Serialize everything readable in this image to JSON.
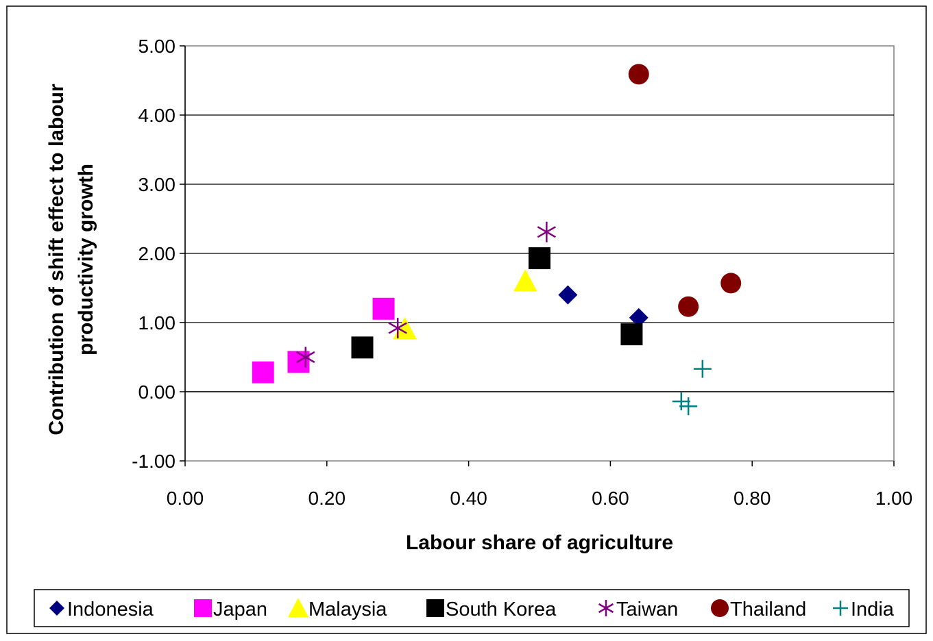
{
  "chart_data": {
    "type": "scatter",
    "title": "",
    "xlabel": "Labour share of agriculture",
    "ylabel_lines": [
      "Contribution of shift effect to labour",
      "productivity growth"
    ],
    "xlim": [
      0,
      1
    ],
    "ylim": [
      -1,
      5
    ],
    "x_ticks": [
      0,
      0.2,
      0.4,
      0.6,
      0.8,
      1
    ],
    "y_ticks": [
      -1,
      0,
      1,
      2,
      3,
      4,
      5
    ],
    "x_tick_labels": [
      "0.00",
      "0.20",
      "0.40",
      "0.60",
      "0.80",
      "1.00"
    ],
    "y_tick_labels": [
      "-1.00",
      "0.00",
      "1.00",
      "2.00",
      "3.00",
      "4.00",
      "5.00"
    ],
    "grid": "horizontal",
    "legend_position": "bottom",
    "series": [
      {
        "name": "Indonesia",
        "marker": "diamond",
        "color": "#000080",
        "points": [
          [
            0.54,
            1.4
          ],
          [
            0.64,
            1.07
          ]
        ]
      },
      {
        "name": "Japan",
        "marker": "square",
        "color": "#FF00FF",
        "points": [
          [
            0.11,
            0.28
          ],
          [
            0.16,
            0.43
          ],
          [
            0.28,
            1.2
          ]
        ]
      },
      {
        "name": "Malaysia",
        "marker": "triangle",
        "color": "#FFFF00",
        "points": [
          [
            0.31,
            0.91
          ],
          [
            0.48,
            1.6
          ]
        ]
      },
      {
        "name": "South Korea",
        "marker": "square",
        "color": "#000000",
        "points": [
          [
            0.25,
            0.64
          ],
          [
            0.5,
            1.93
          ],
          [
            0.63,
            0.83
          ]
        ]
      },
      {
        "name": "Taiwan",
        "marker": "star",
        "color": "#800080",
        "points": [
          [
            0.17,
            0.5
          ],
          [
            0.3,
            0.92
          ],
          [
            0.51,
            2.31
          ]
        ]
      },
      {
        "name": "Thailand",
        "marker": "circle",
        "color": "#800000",
        "points": [
          [
            0.64,
            4.59
          ],
          [
            0.71,
            1.23
          ],
          [
            0.77,
            1.57
          ]
        ]
      },
      {
        "name": "India",
        "marker": "plus",
        "color": "#008080",
        "points": [
          [
            0.7,
            -0.14
          ],
          [
            0.71,
            -0.21
          ],
          [
            0.73,
            0.33
          ]
        ]
      }
    ]
  }
}
